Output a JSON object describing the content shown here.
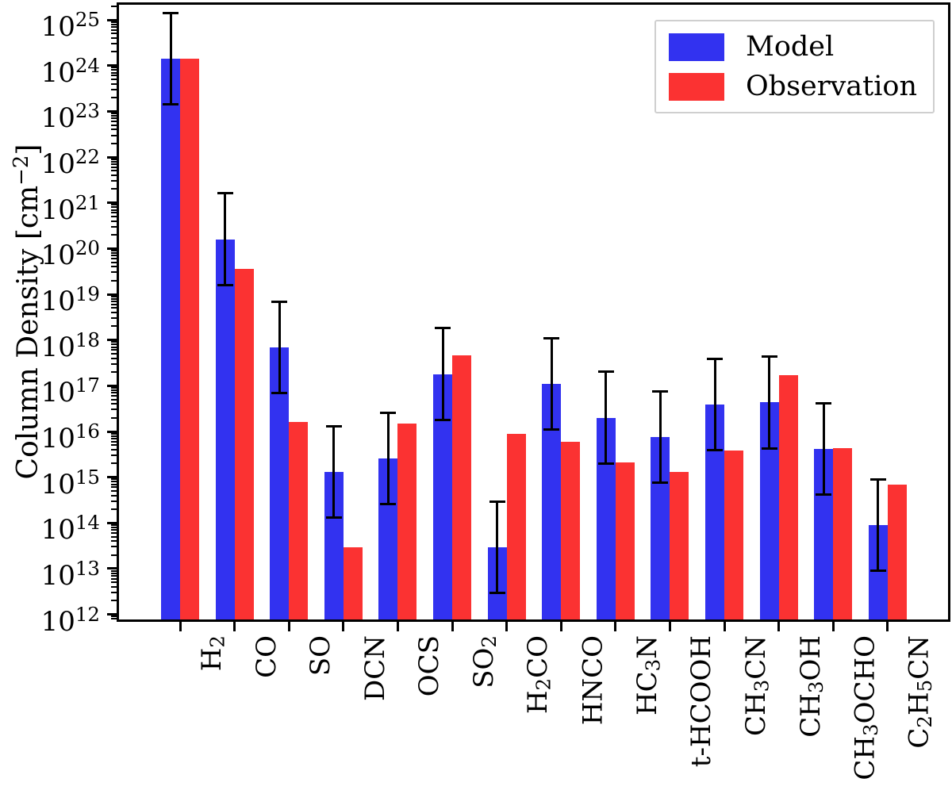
{
  "figure": {
    "background": "#ffffff"
  },
  "chart_data": {
    "type": "bar",
    "title": "",
    "xlabel": "",
    "ylabel": "Column Density [cm⁻²]",
    "y_scale": "log",
    "ylim_log10": [
      11.89,
      25.33
    ],
    "y_tick_exponents": [
      12,
      13,
      14,
      15,
      16,
      17,
      18,
      19,
      20,
      21,
      22,
      23,
      24,
      25
    ],
    "grid": false,
    "legend_position": "upper right",
    "categories": [
      "H₂",
      "CO",
      "SO",
      "DCN",
      "OCS",
      "SO₂",
      "H₂CO",
      "HNCO",
      "HC₃N",
      "t-HCOOH",
      "CH₃CN",
      "CH₃OH",
      "CH₃OCHO",
      "C₂H₅CN"
    ],
    "series": [
      {
        "name": "Model",
        "color": "#3232f0",
        "error_factor": 10,
        "values": [
          1.4e+24,
          1.6e+20,
          6.8e+17,
          1300000000000000.0,
          2600000000000000.0,
          1.8e+17,
          29000000000000.0,
          1.1e+17,
          2e+16,
          7500000000000000.0,
          3.9e+16,
          4.3e+16,
          4100000000000000.0,
          90000000000000.0
        ]
      },
      {
        "name": "Observation",
        "color": "#fb3232",
        "values": [
          1.4e+24,
          3.6e+19,
          1.6e+16,
          29000000000000.0,
          1.5e+16,
          4.7e+17,
          9000000000000000.0,
          6000000000000000.0,
          2100000000000000.0,
          1300000000000000.0,
          3900000000000000.0,
          1.7e+17,
          4300000000000000.0,
          680000000000000.0
        ]
      }
    ],
    "error_bar_color": "#000000",
    "axis_color": "#000000"
  }
}
